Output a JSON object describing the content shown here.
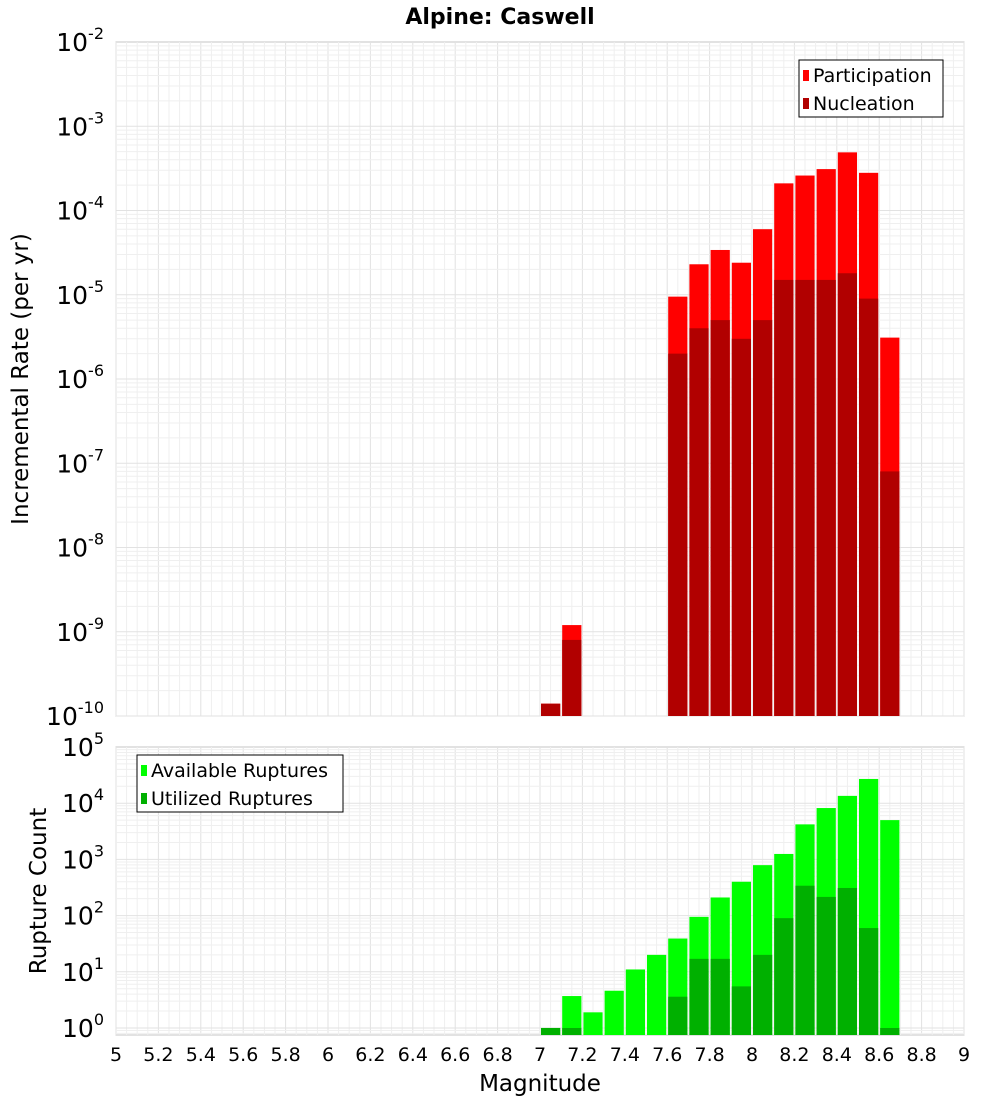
{
  "chart_data": [
    {
      "type": "bar",
      "title": "Alpine: Caswell",
      "ylabel": "Incremental Rate (per yr)",
      "yscale": "log",
      "ylim": [
        1e-10,
        0.01
      ],
      "y_tick_exponents": [
        "-10",
        "-9",
        "-8",
        "-7",
        "-6",
        "-5",
        "-4",
        "-3",
        "-2"
      ],
      "y_tick_base": "10",
      "xlim": [
        5,
        9
      ],
      "grid": true,
      "legend_position": "top-right",
      "bar_centers": [
        7.05,
        7.15,
        7.65,
        7.75,
        7.85,
        7.95,
        8.05,
        8.15,
        8.25,
        8.35,
        8.45,
        8.55,
        8.65
      ],
      "series": [
        {
          "name": "Participation",
          "color": "#ff0000",
          "values": [
            1.4e-10,
            1.2e-09,
            9.5e-06,
            2.3e-05,
            3.4e-05,
            2.4e-05,
            6e-05,
            0.00021,
            0.00026,
            0.00031,
            0.00049,
            0.00028,
            3.1e-06
          ]
        },
        {
          "name": "Nucleation",
          "color": "#b10000",
          "values": [
            1.4e-10,
            8e-10,
            2e-06,
            4e-06,
            5e-06,
            3e-06,
            5e-06,
            1.5e-05,
            1.5e-05,
            1.5e-05,
            1.8e-05,
            9e-06,
            8e-08
          ]
        }
      ]
    },
    {
      "type": "bar",
      "ylabel": "Rupture Count",
      "xlabel": "Magnitude",
      "yscale": "log",
      "ylim": [
        0.75,
        100000
      ],
      "y_tick_exponents": [
        "0",
        "1",
        "2",
        "3",
        "4",
        "5"
      ],
      "y_tick_base": "10",
      "xlim": [
        5,
        9
      ],
      "x_ticks": [
        "5",
        "5.2",
        "5.4",
        "5.6",
        "5.8",
        "6",
        "6.2",
        "6.4",
        "6.6",
        "6.8",
        "7",
        "7.2",
        "7.4",
        "7.6",
        "7.8",
        "8",
        "8.2",
        "8.4",
        "8.6",
        "8.8",
        "9"
      ],
      "grid": true,
      "legend_position": "top-left",
      "bar_centers": [
        7.05,
        7.15,
        7.25,
        7.35,
        7.45,
        7.55,
        7.65,
        7.75,
        7.85,
        7.95,
        8.05,
        8.15,
        8.25,
        8.35,
        8.45,
        8.55,
        8.65
      ],
      "series": [
        {
          "name": "Available Ruptures",
          "color": "#00ff00",
          "values": [
            1,
            3.7,
            1.9,
            4.6,
            11,
            20,
            39,
            95,
            210,
            400,
            790,
            1250,
            4200,
            8200,
            13500,
            27000,
            5000
          ]
        },
        {
          "name": "Utilized Ruptures",
          "color": "#00b000",
          "values": [
            1,
            1,
            0,
            0,
            0,
            0,
            3.6,
            17,
            17,
            5.5,
            20,
            90,
            340,
            215,
            310,
            60,
            1
          ]
        }
      ]
    }
  ]
}
